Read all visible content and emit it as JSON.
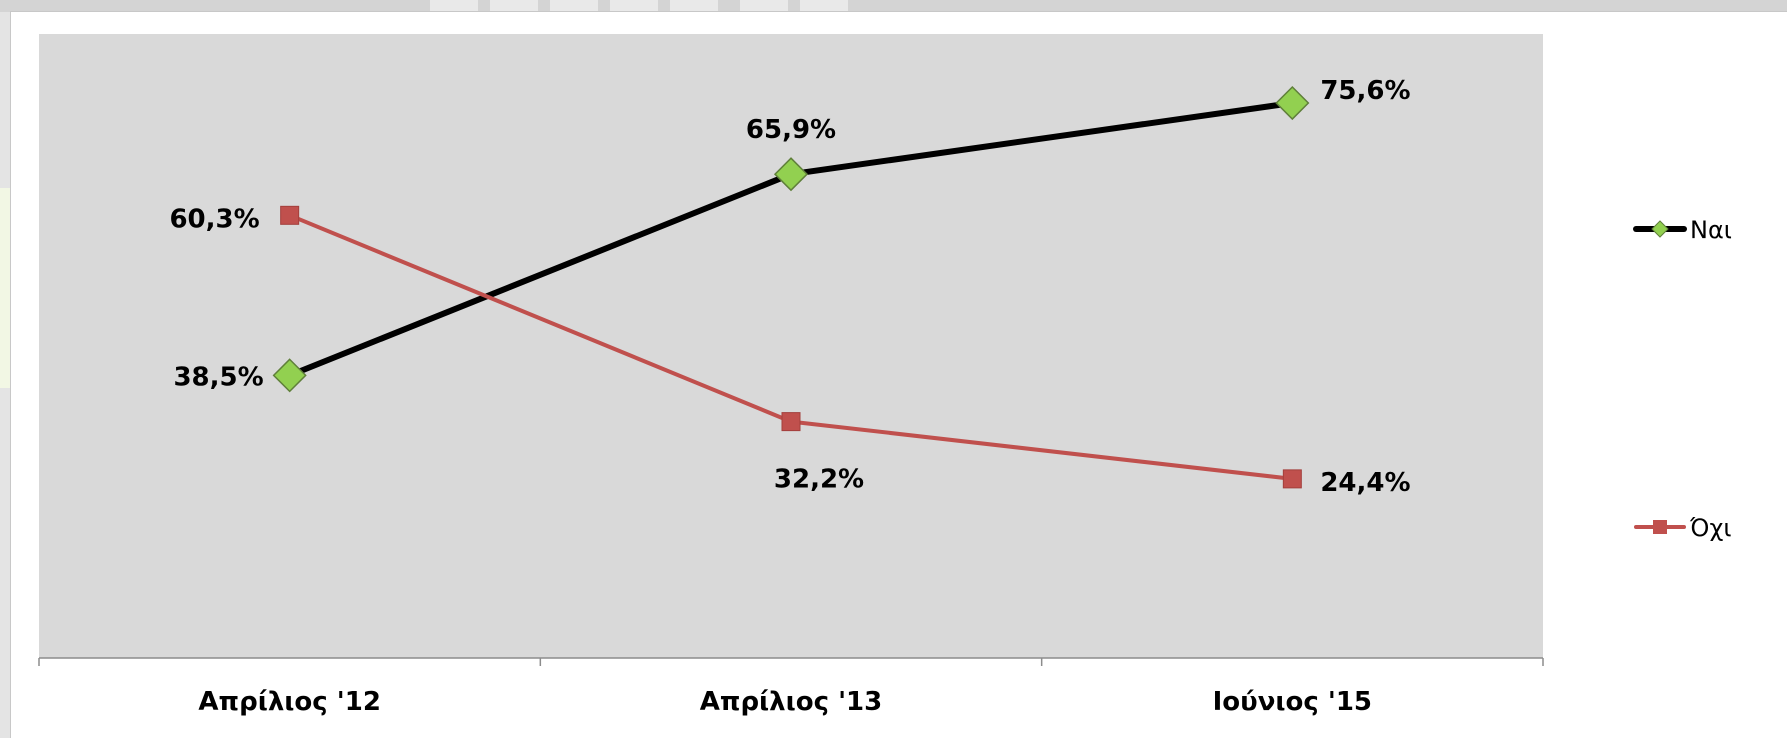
{
  "chart_data": {
    "type": "line",
    "title": "",
    "xlabel": "",
    "ylabel": "",
    "categories": [
      "Απρίλιος '12",
      "Απρίλιος '13",
      "Ιούνιος '15"
    ],
    "ylim": [
      0,
      85
    ],
    "grid": false,
    "legend_position": "right",
    "plot_background": "#d9d9d9",
    "series": [
      {
        "name": "Ναι",
        "values": [
          38.5,
          65.9,
          75.6
        ],
        "labels": [
          "38,5%",
          "65,9%",
          "75,6%"
        ],
        "color": "#000000",
        "marker": "diamond",
        "marker_color": "#92d050"
      },
      {
        "name": "Όχι",
        "values": [
          60.3,
          32.2,
          24.4
        ],
        "labels": [
          "60,3%",
          "32,2%",
          "24,4%"
        ],
        "color": "#c0504d",
        "marker": "square",
        "marker_color": "#c0504d"
      }
    ]
  }
}
